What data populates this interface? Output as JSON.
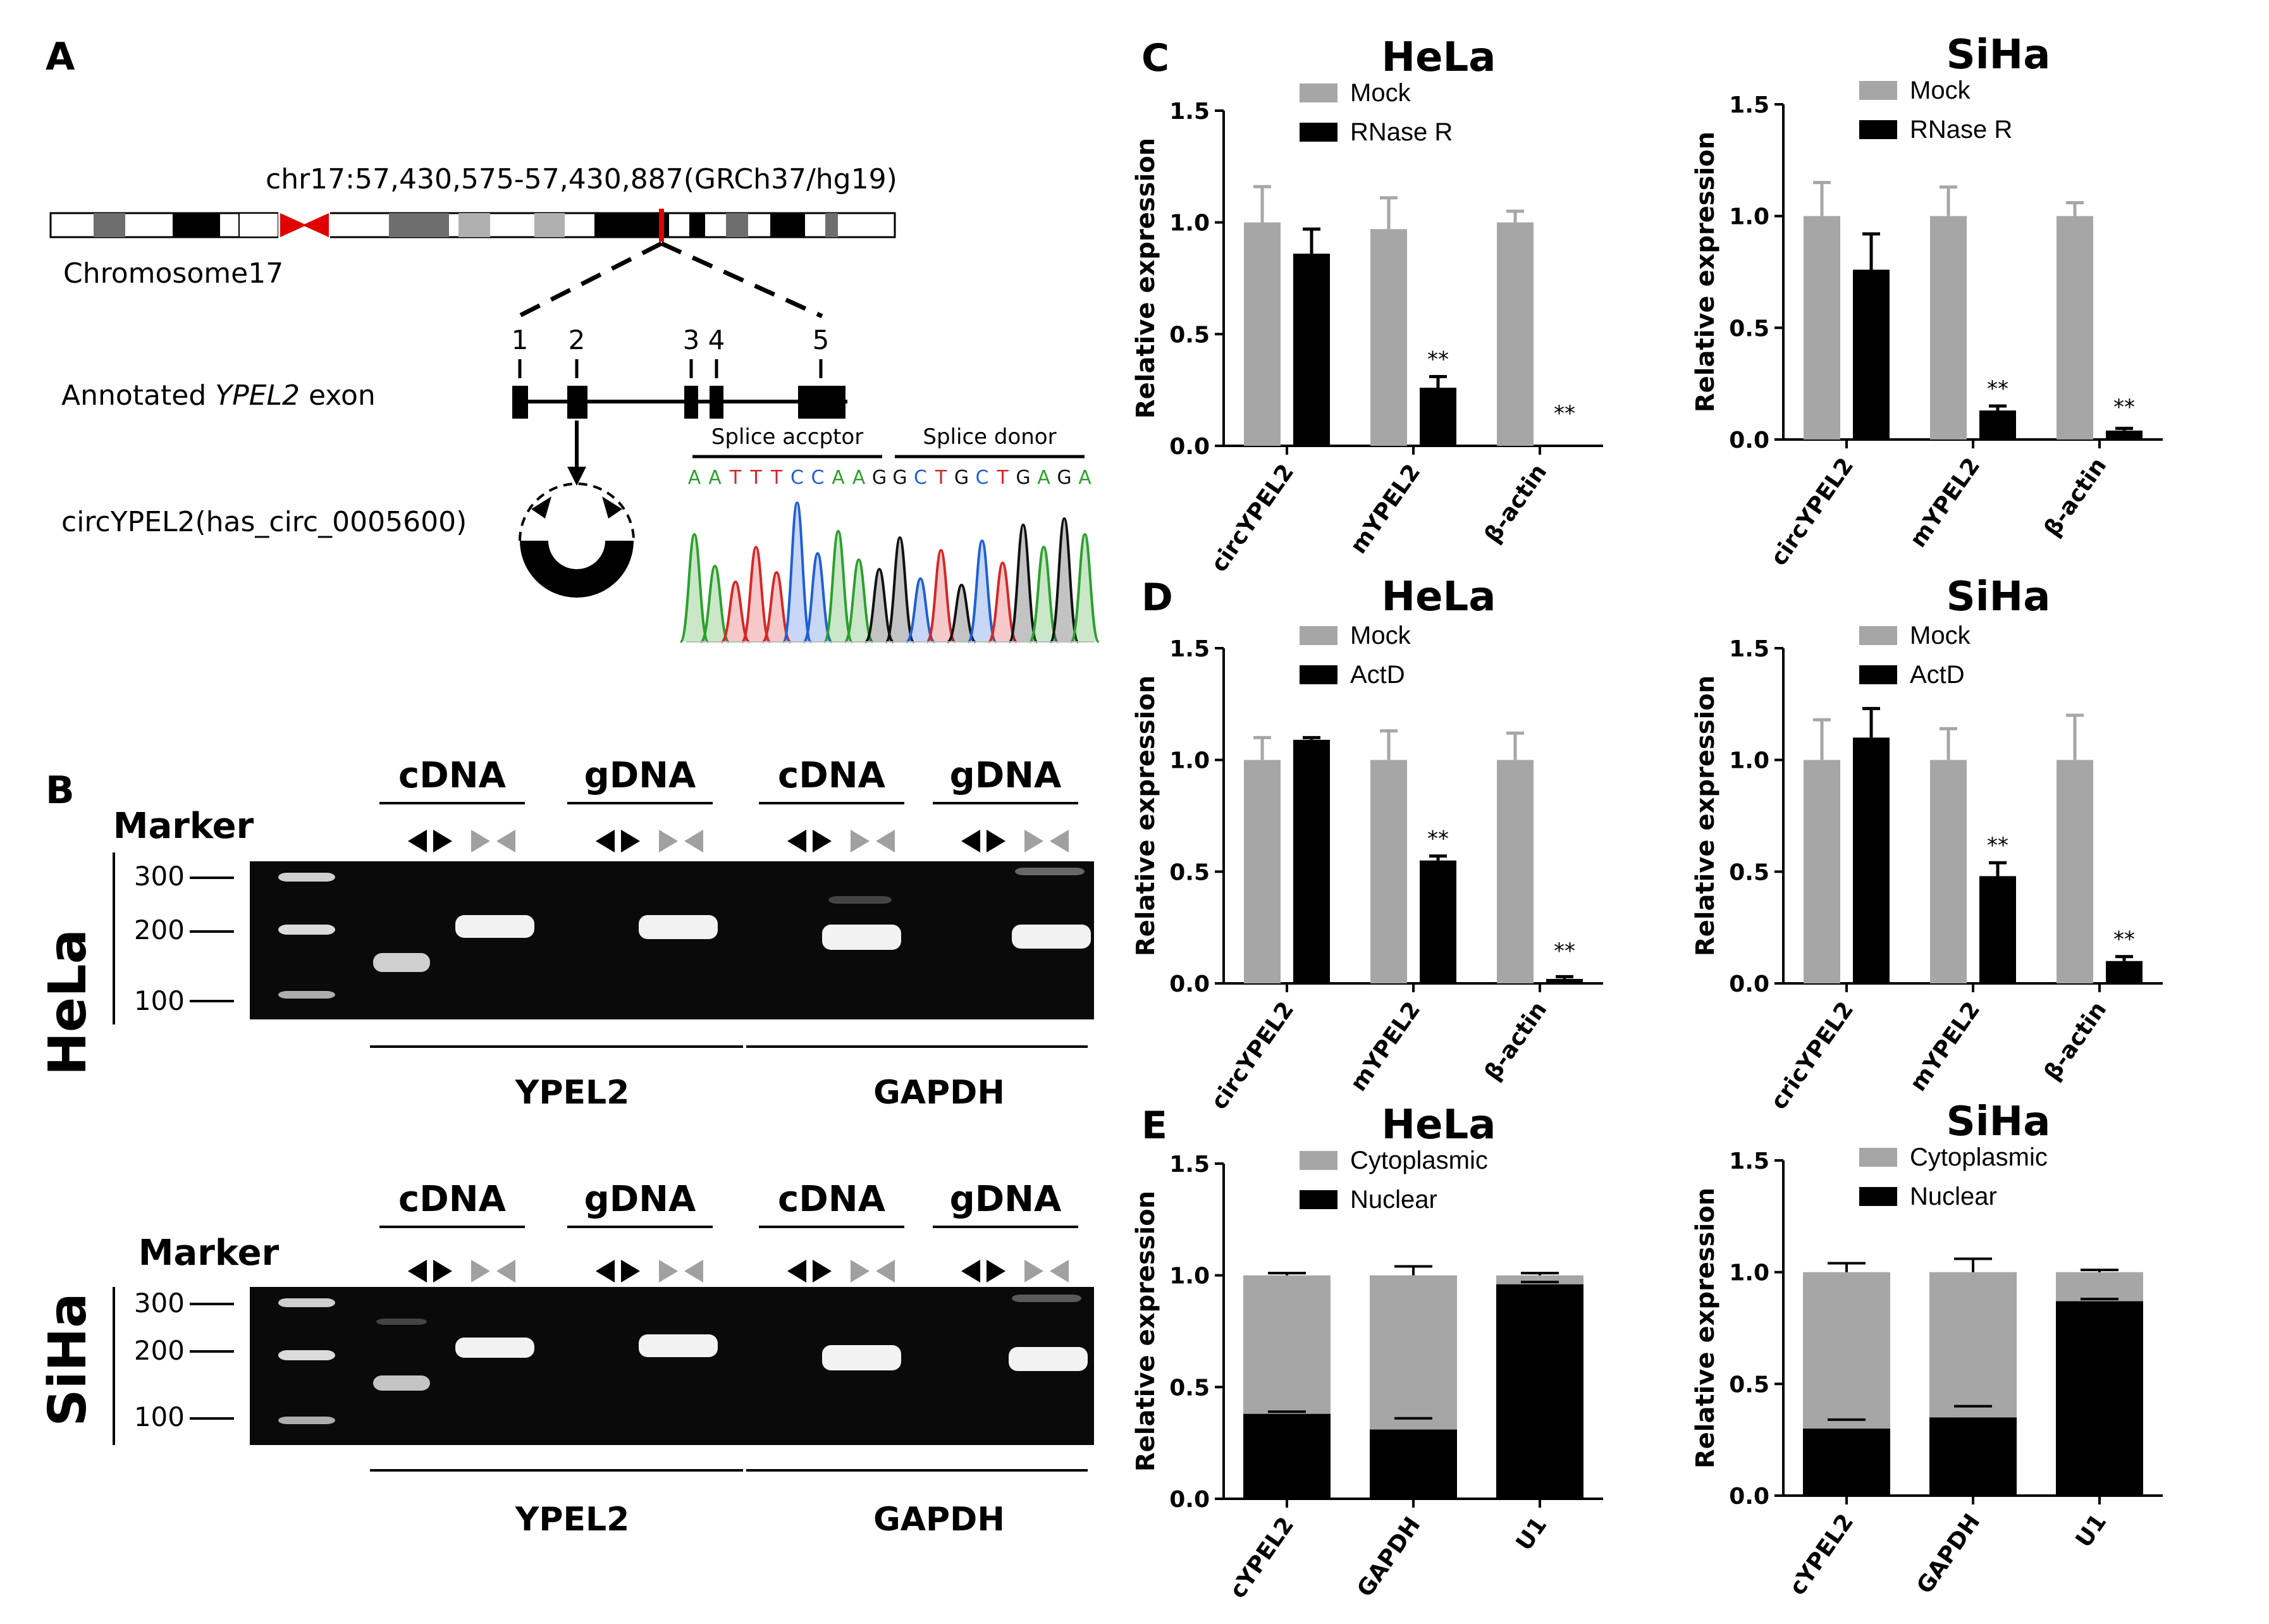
{
  "panels": {
    "A": "A",
    "B": "B",
    "C": "C",
    "D": "D",
    "E": "E"
  },
  "colors": {
    "mock": "#a6a6a6",
    "treat": "#000000",
    "gel": "#0a0a0a",
    "band": "#f2f2f2",
    "red": "#e00000",
    "grey_arrow": "#a0a0a0"
  },
  "panelA": {
    "coords": "chr17:57,430,575-57,430,887(GRCh37/hg19)",
    "chrom_label": "Chromosome17",
    "exon_label_pre": "Annotated ",
    "exon_label_gene": "YPEL2",
    "exon_label_post": " exon",
    "exon_numbers": [
      "1",
      "2",
      "3",
      "4",
      "5"
    ],
    "circ_label": "circYPEL2(has_circ_0005600)",
    "splice_acceptor": "Splice accptor",
    "splice_donor": "Splice donor",
    "seq": [
      {
        "b": "A",
        "c": "#2ca02c"
      },
      {
        "b": "A",
        "c": "#2ca02c"
      },
      {
        "b": "T",
        "c": "#d62728"
      },
      {
        "b": "T",
        "c": "#d62728"
      },
      {
        "b": "T",
        "c": "#d62728"
      },
      {
        "b": "C",
        "c": "#1f5fd6"
      },
      {
        "b": "C",
        "c": "#1f5fd6"
      },
      {
        "b": "A",
        "c": "#2ca02c"
      },
      {
        "b": "A",
        "c": "#2ca02c"
      },
      {
        "b": "G",
        "c": "#111111"
      },
      {
        "b": "G",
        "c": "#111111"
      },
      {
        "b": "C",
        "c": "#1f5fd6"
      },
      {
        "b": "T",
        "c": "#d62728"
      },
      {
        "b": "G",
        "c": "#111111"
      },
      {
        "b": "C",
        "c": "#1f5fd6"
      },
      {
        "b": "T",
        "c": "#d62728"
      },
      {
        "b": "G",
        "c": "#111111"
      },
      {
        "b": "A",
        "c": "#2ca02c"
      },
      {
        "b": "G",
        "c": "#111111"
      },
      {
        "b": "A",
        "c": "#2ca02c"
      }
    ]
  },
  "gels": [
    {
      "cell": "HeLa",
      "marker": "Marker",
      "ladder": [
        "300",
        "200",
        "100"
      ],
      "groups": [
        "cDNA",
        "gDNA",
        "cDNA",
        "gDNA"
      ],
      "genes": [
        "YPEL2",
        "GAPDH"
      ]
    },
    {
      "cell": "SiHa",
      "marker": "Marker",
      "ladder": [
        "300",
        "200",
        "100"
      ],
      "groups": [
        "cDNA",
        "gDNA",
        "cDNA",
        "gDNA"
      ],
      "genes": [
        "YPEL2",
        "GAPDH"
      ]
    }
  ],
  "chart_data": [
    {
      "panel": "C",
      "type": "bar",
      "title": "HeLa",
      "ylabel": "Relative expression",
      "ylim": [
        0,
        1.5
      ],
      "yticks": [
        "0.0",
        "0.5",
        "1.0",
        "1.5"
      ],
      "categories": [
        "circYPEL2",
        "mYPEL2",
        "β-actin"
      ],
      "series": [
        {
          "name": "Mock",
          "values": [
            1.0,
            0.97,
            1.0
          ],
          "errors": [
            0.16,
            0.14,
            0.05
          ]
        },
        {
          "name": "RNase R",
          "values": [
            0.86,
            0.26,
            0.0
          ],
          "errors": [
            0.11,
            0.05,
            0.0
          ]
        }
      ],
      "significance": [
        "",
        "**",
        "**"
      ]
    },
    {
      "panel": "C",
      "type": "bar",
      "title": "SiHa",
      "ylabel": "Relative expression",
      "ylim": [
        0,
        1.5
      ],
      "yticks": [
        "0.0",
        "0.5",
        "1.0",
        "1.5"
      ],
      "categories": [
        "circYPEL2",
        "mYPEL2",
        "β-actin"
      ],
      "series": [
        {
          "name": "Mock",
          "values": [
            1.0,
            1.0,
            1.0
          ],
          "errors": [
            0.15,
            0.13,
            0.06
          ]
        },
        {
          "name": "RNase R",
          "values": [
            0.76,
            0.13,
            0.04
          ],
          "errors": [
            0.16,
            0.02,
            0.01
          ]
        }
      ],
      "significance": [
        "",
        "**",
        "**"
      ]
    },
    {
      "panel": "D",
      "type": "bar",
      "title": "HeLa",
      "ylabel": "Relative expression",
      "ylim": [
        0,
        1.5
      ],
      "yticks": [
        "0.0",
        "0.5",
        "1.0",
        "1.5"
      ],
      "categories": [
        "circYPEL2",
        "mYPEL2",
        "β-actin"
      ],
      "series": [
        {
          "name": "Mock",
          "values": [
            1.0,
            1.0,
            1.0
          ],
          "errors": [
            0.1,
            0.13,
            0.12
          ]
        },
        {
          "name": "ActD",
          "values": [
            1.09,
            0.55,
            0.02
          ],
          "errors": [
            0.01,
            0.02,
            0.01
          ]
        }
      ],
      "significance": [
        "",
        "**",
        "**"
      ]
    },
    {
      "panel": "D",
      "type": "bar",
      "title": "SiHa",
      "ylabel": "Relative expression",
      "ylim": [
        0,
        1.5
      ],
      "yticks": [
        "0.0",
        "0.5",
        "1.0",
        "1.5"
      ],
      "categories": [
        "cricYPEL2",
        "mYPEL2",
        "β-actin"
      ],
      "series": [
        {
          "name": "Mock",
          "values": [
            1.0,
            1.0,
            1.0
          ],
          "errors": [
            0.18,
            0.14,
            0.2
          ]
        },
        {
          "name": "ActD",
          "values": [
            1.1,
            0.48,
            0.1
          ],
          "errors": [
            0.13,
            0.06,
            0.02
          ]
        }
      ],
      "significance": [
        "",
        "**",
        "**"
      ]
    },
    {
      "panel": "E",
      "type": "stacked-bar",
      "title": "HeLa",
      "ylabel": "Relative expression",
      "ylim": [
        0,
        1.5
      ],
      "yticks": [
        "0.0",
        "0.5",
        "1.0",
        "1.5"
      ],
      "categories": [
        "cYPEL2",
        "GAPDH",
        "U1"
      ],
      "series": [
        {
          "name": "Cytoplasmic",
          "values": [
            0.62,
            0.69,
            0.04
          ],
          "errors": [
            0.01,
            0.04,
            0.01
          ]
        },
        {
          "name": "Nuclear",
          "values": [
            0.38,
            0.31,
            0.96
          ],
          "errors": [
            0.01,
            0.05,
            0.01
          ]
        }
      ]
    },
    {
      "panel": "E",
      "type": "stacked-bar",
      "title": "SiHa",
      "ylabel": "Relative expression",
      "ylim": [
        0,
        1.5
      ],
      "yticks": [
        "0.0",
        "0.5",
        "1.0",
        "1.5"
      ],
      "categories": [
        "cYPEL2",
        "GAPDH",
        "U1"
      ],
      "series": [
        {
          "name": "Cytoplasmic",
          "values": [
            0.7,
            0.65,
            0.13
          ],
          "errors": [
            0.04,
            0.06,
            0.01
          ]
        },
        {
          "name": "Nuclear",
          "values": [
            0.3,
            0.35,
            0.87
          ],
          "errors": [
            0.04,
            0.05,
            0.01
          ]
        }
      ]
    }
  ]
}
